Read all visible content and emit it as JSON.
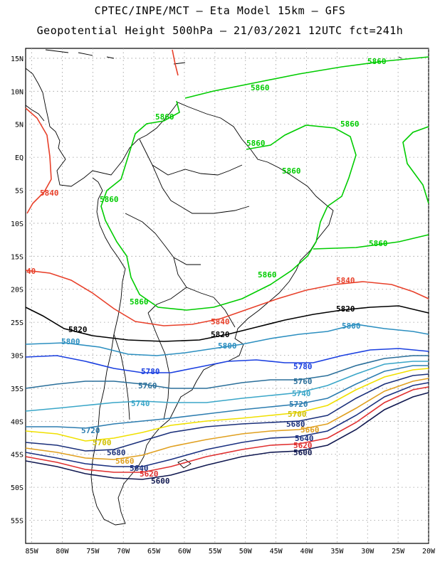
{
  "header": {
    "title_line1": "CPTEC/INPE/MCT –  Eta Model 15km – GFS",
    "title_line2": "Geopotential Height 500hPa – 21/03/2021 12UTC fct=241h"
  },
  "axes": {
    "lat_labels": [
      "15N",
      "10N",
      "5N",
      "EQ",
      "5S",
      "10S",
      "15S",
      "20S",
      "25S",
      "30S",
      "35S",
      "40S",
      "45S",
      "50S",
      "55S"
    ],
    "lon_labels": [
      "85W",
      "80W",
      "75W",
      "70W",
      "65W",
      "60W",
      "55W",
      "50W",
      "45W",
      "40W",
      "35W",
      "30W",
      "25W",
      "20W"
    ]
  },
  "contours": [
    {
      "level": "5860",
      "color": "#00cc00"
    },
    {
      "level": "5840",
      "color": "#e8402a"
    },
    {
      "level": "5820",
      "color": "#000000"
    },
    {
      "level": "5800",
      "color": "#2c8fc0"
    },
    {
      "level": "5780",
      "color": "#1a3fe0"
    },
    {
      "level": "5760",
      "color": "#2a6f9a"
    },
    {
      "level": "5740",
      "color": "#3aa6c8"
    },
    {
      "level": "5720",
      "color": "#2d7db0"
    },
    {
      "level": "5700",
      "color": "#f0e000"
    },
    {
      "level": "5680",
      "color": "#1a2f7a"
    },
    {
      "level": "5660",
      "color": "#e0a020"
    },
    {
      "level": "5640",
      "color": "#1a3080"
    },
    {
      "level": "5620",
      "color": "#e03030"
    },
    {
      "level": "5600",
      "color": "#101850"
    }
  ],
  "contour_labels": {
    "c5860": "5860",
    "c5840": "5840",
    "c5840b": "40",
    "c5820": "5820",
    "c5800": "5800",
    "c5780": "5780",
    "c5760": "5760",
    "c5740": "5740",
    "c5720": "5720",
    "c5700": "5700",
    "c5680": "5680",
    "c5660": "5660",
    "c5640": "5640",
    "c5620": "5620",
    "c5600": "5600"
  }
}
